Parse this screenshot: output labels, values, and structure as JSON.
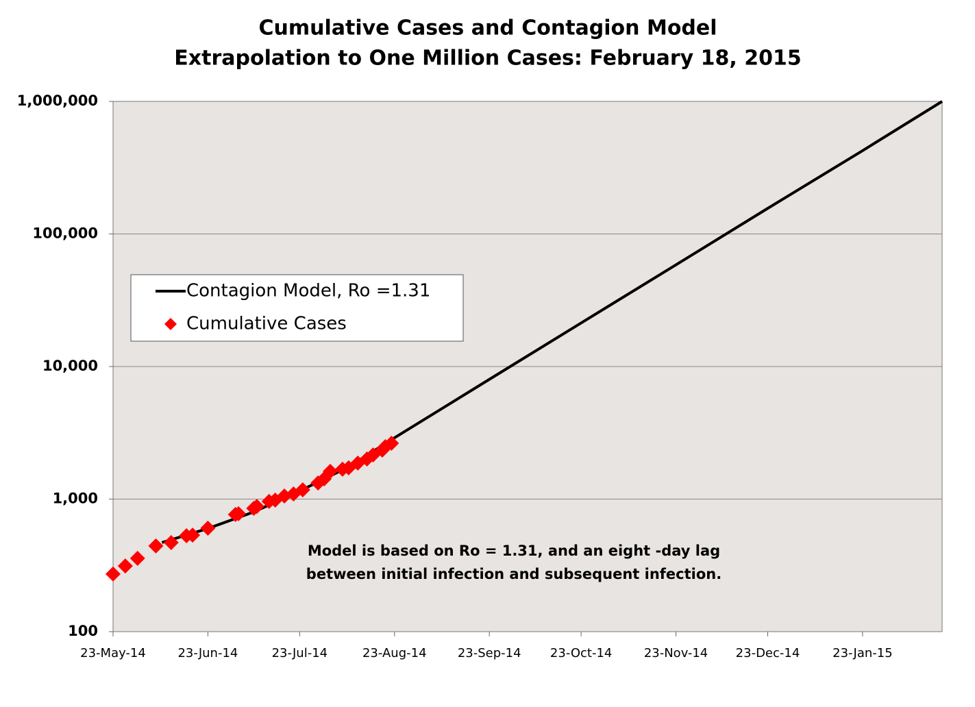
{
  "chart_data": {
    "type": "line",
    "title": "Cumulative Cases and Contagion Model",
    "subtitle": "Extrapolation to One Million Cases: February 18, 2015",
    "log_y": true,
    "grid": true,
    "legend": "upper left",
    "xlim": [
      "2014-05-23",
      "2015-02-18"
    ],
    "xticks": [
      {
        "value": "2014-05-23",
        "label": "23-May-14"
      },
      {
        "value": "2014-06-23",
        "label": "23-Jun-14"
      },
      {
        "value": "2014-07-23",
        "label": "23-Jul-14"
      },
      {
        "value": "2014-08-23",
        "label": "23-Aug-14"
      },
      {
        "value": "2014-09-23",
        "label": "23-Sep-14"
      },
      {
        "value": "2014-10-23",
        "label": "23-Oct-14"
      },
      {
        "value": "2014-11-23",
        "label": "23-Nov-14"
      },
      {
        "value": "2014-12-23",
        "label": "23-Dec-14"
      },
      {
        "value": "2015-01-23",
        "label": "23-Jan-15"
      }
    ],
    "ylim": [
      100,
      1000000
    ],
    "yticks": [
      100,
      {
        "value": 1000,
        "label": "1,000"
      },
      {
        "value": 10000,
        "label": "10,000"
      },
      {
        "value": 100000,
        "label": "100,000"
      },
      {
        "value": 1000000,
        "label": "1,000,000"
      }
    ],
    "series": [
      {
        "name": "Contagion Model, Ro =1.31",
        "color": "#000000",
        "mark": "line",
        "x": [
          "2014-06-08",
          "2014-06-23",
          "2014-07-08",
          "2014-07-23",
          "2014-08-08",
          "2014-08-23",
          "2014-09-23",
          "2014-10-23",
          "2014-11-23",
          "2014-12-23",
          "2015-01-23",
          "2015-02-18"
        ],
        "values": [
          470,
          600,
          800,
          1150,
          1750,
          2900,
          8000,
          21300,
          58500,
          156000,
          425000,
          1000000
        ]
      },
      {
        "name": "Cumulative Cases",
        "color": "#ff0000",
        "mark": "diamond",
        "x": [
          "2014-05-23",
          "2014-05-27",
          "2014-05-31",
          "2014-06-06",
          "2014-06-11",
          "2014-06-16",
          "2014-06-18",
          "2014-06-23",
          "2014-07-02",
          "2014-07-03",
          "2014-07-08",
          "2014-07-09",
          "2014-07-13",
          "2014-07-15",
          "2014-07-18",
          "2014-07-21",
          "2014-07-24",
          "2014-07-29",
          "2014-07-31",
          "2014-08-02",
          "2014-08-06",
          "2014-08-08",
          "2014-08-11",
          "2014-08-14",
          "2014-08-16",
          "2014-08-19",
          "2014-08-20",
          "2014-08-22"
        ],
        "values": [
          272,
          313,
          357,
          443,
          470,
          529,
          535,
          603,
          765,
          775,
          851,
          880,
          960,
          982,
          1055,
          1093,
          1175,
          1322,
          1420,
          1620,
          1680,
          1720,
          1867,
          2005,
          2155,
          2343,
          2485,
          2637
        ]
      }
    ],
    "annotation": [
      "Model is based on Ro = 1.31, and  an eight -day lag",
      "between initial infection and subsequent infection."
    ]
  }
}
